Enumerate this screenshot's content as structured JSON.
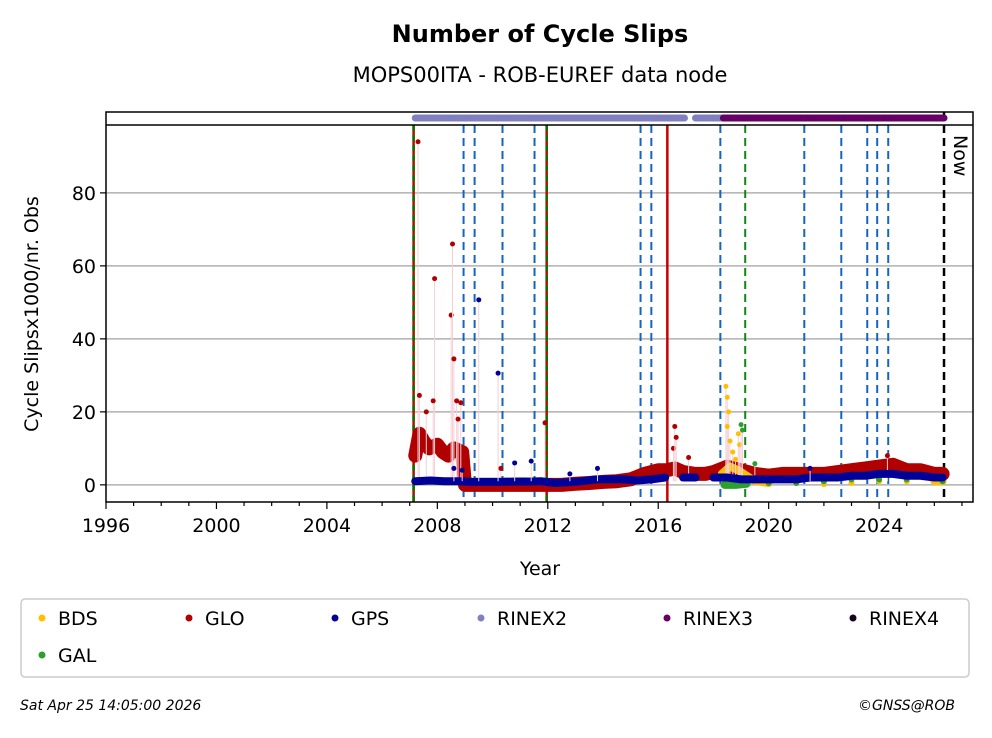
{
  "chart_data": {
    "type": "scatter",
    "title": "Number of Cycle Slips",
    "subtitle": "MOPS00ITA - ROB-EUREF data node",
    "xlabel": "Year",
    "ylabel": "Cycle Slipsx1000/nr. Obs",
    "xlim": [
      1996,
      2027.4
    ],
    "ylim": [
      -4.7,
      98.6
    ],
    "x_ticks": [
      1996,
      2000,
      2004,
      2008,
      2012,
      2016,
      2020,
      2024
    ],
    "x_tick_labels": [
      "1996",
      "2000",
      "2004",
      "2008",
      "2012",
      "2016",
      "2020",
      "2024"
    ],
    "y_ticks": [
      0,
      20,
      40,
      60,
      80
    ],
    "y_tick_labels": [
      "0",
      "20",
      "40",
      "60",
      "80"
    ],
    "grid": "horizontal",
    "legend_placement": "bottom",
    "series": [
      {
        "name": "GLO",
        "color": "#b00000",
        "points": [
          [
            2007.2,
            8
          ],
          [
            2007.35,
            14
          ],
          [
            2007.5,
            12
          ],
          [
            2007.7,
            10
          ],
          [
            2008.0,
            11
          ],
          [
            2008.2,
            9
          ],
          [
            2008.4,
            8
          ],
          [
            2008.6,
            10
          ],
          [
            2008.9,
            9
          ],
          [
            2009.0,
            0
          ],
          [
            2009.5,
            0
          ],
          [
            2010.0,
            0
          ],
          [
            2010.5,
            0
          ],
          [
            2011.0,
            0
          ],
          [
            2011.5,
            0
          ],
          [
            2012.0,
            0
          ],
          [
            2012.5,
            0
          ],
          [
            2013.0,
            0.3
          ],
          [
            2013.5,
            0.5
          ],
          [
            2014.0,
            0.8
          ],
          [
            2014.5,
            1
          ],
          [
            2015.0,
            1.5
          ],
          [
            2015.5,
            3
          ],
          [
            2016.0,
            4
          ],
          [
            2016.3,
            4
          ],
          [
            2016.6,
            4.5
          ],
          [
            2016.9,
            3.5
          ],
          [
            2017.35,
            3
          ],
          [
            2017.7,
            3
          ],
          [
            2018.0,
            3.5
          ],
          [
            2018.5,
            5
          ],
          [
            2019.0,
            4
          ],
          [
            2019.5,
            3
          ],
          [
            2020.0,
            2.5
          ],
          [
            2020.5,
            3
          ],
          [
            2021.0,
            3
          ],
          [
            2021.5,
            3
          ],
          [
            2022.0,
            3
          ],
          [
            2022.5,
            3.5
          ],
          [
            2023.0,
            4
          ],
          [
            2023.5,
            4.5
          ],
          [
            2024.0,
            5
          ],
          [
            2024.5,
            5.5
          ],
          [
            2025.0,
            4
          ],
          [
            2025.5,
            4
          ],
          [
            2026.0,
            3
          ],
          [
            2026.3,
            3
          ]
        ],
        "outliers": [
          [
            2007.3,
            94
          ],
          [
            2007.35,
            24.5
          ],
          [
            2007.6,
            20
          ],
          [
            2007.9,
            56.5
          ],
          [
            2007.85,
            23
          ],
          [
            2008.5,
            46.5
          ],
          [
            2008.55,
            66
          ],
          [
            2008.6,
            34.5
          ],
          [
            2008.7,
            23
          ],
          [
            2008.85,
            22.5
          ],
          [
            2008.75,
            18
          ],
          [
            2010.3,
            4.5
          ],
          [
            2011.9,
            17
          ],
          [
            2016.55,
            10
          ],
          [
            2016.6,
            16
          ],
          [
            2016.65,
            13
          ],
          [
            2017.1,
            7.5
          ],
          [
            2024.3,
            8
          ]
        ]
      },
      {
        "name": "GPS",
        "color": "#000099",
        "points": [
          [
            2007.2,
            1
          ],
          [
            2007.75,
            1.2
          ],
          [
            2008.25,
            1
          ],
          [
            2008.75,
            1
          ],
          [
            2009.25,
            0.8
          ],
          [
            2009.75,
            0.8
          ],
          [
            2010.25,
            0.8
          ],
          [
            2010.75,
            0.9
          ],
          [
            2011.25,
            0.9
          ],
          [
            2011.75,
            1
          ],
          [
            2012.25,
            0.5
          ],
          [
            2012.75,
            0.7
          ],
          [
            2013.25,
            1
          ],
          [
            2013.75,
            1.5
          ],
          [
            2014.25,
            1.5
          ],
          [
            2014.75,
            1.5
          ],
          [
            2015.25,
            1.2
          ],
          [
            2015.75,
            1.5
          ],
          [
            2016.25,
            2
          ],
          [
            2016.9,
            2
          ],
          [
            2017.35,
            2
          ],
          [
            2018.0,
            2
          ],
          [
            2018.5,
            2
          ],
          [
            2019.0,
            1.5
          ],
          [
            2019.5,
            1.5
          ],
          [
            2020.0,
            1.5
          ],
          [
            2020.5,
            1.5
          ],
          [
            2021.0,
            1.5
          ],
          [
            2021.5,
            2
          ],
          [
            2022.0,
            2
          ],
          [
            2022.5,
            2
          ],
          [
            2023.0,
            2.5
          ],
          [
            2023.5,
            2.5
          ],
          [
            2024.0,
            3
          ],
          [
            2024.5,
            3
          ],
          [
            2025.0,
            2.5
          ],
          [
            2025.5,
            2.5
          ],
          [
            2026.0,
            2
          ],
          [
            2026.3,
            2
          ]
        ],
        "outliers": [
          [
            2008.6,
            4.5
          ],
          [
            2008.9,
            4
          ],
          [
            2009.5,
            50.7
          ],
          [
            2010.2,
            30.6
          ],
          [
            2010.8,
            6
          ],
          [
            2011.4,
            6.5
          ],
          [
            2012.8,
            3
          ],
          [
            2013.8,
            4.5
          ],
          [
            2021.5,
            4.5
          ]
        ]
      },
      {
        "name": "BDS",
        "color": "#ffbf00",
        "points": [
          [
            2018.3,
            3
          ],
          [
            2018.6,
            5
          ],
          [
            2018.9,
            4
          ],
          [
            2019.1,
            3
          ],
          [
            2019.5,
            1
          ],
          [
            2020.0,
            0.5
          ],
          [
            2021.0,
            0.5
          ],
          [
            2022.0,
            0.2
          ],
          [
            2023.0,
            0.5
          ],
          [
            2024.0,
            1
          ],
          [
            2025.0,
            1
          ],
          [
            2026.0,
            1
          ],
          [
            2026.3,
            1
          ]
        ],
        "outliers": [
          [
            2018.45,
            27
          ],
          [
            2018.5,
            24
          ],
          [
            2018.55,
            20
          ],
          [
            2018.5,
            16
          ],
          [
            2018.6,
            12
          ],
          [
            2018.7,
            9
          ],
          [
            2018.8,
            7
          ],
          [
            2018.9,
            14
          ],
          [
            2018.95,
            11
          ]
        ]
      },
      {
        "name": "GAL",
        "color": "#2ca02c",
        "points": [
          [
            2018.4,
            0
          ],
          [
            2018.8,
            0
          ],
          [
            2019.2,
            0.3
          ],
          [
            2020.0,
            0.5
          ],
          [
            2021.0,
            0.5
          ],
          [
            2022.0,
            1
          ],
          [
            2023.0,
            1.5
          ],
          [
            2024.0,
            1.5
          ],
          [
            2025.0,
            1.5
          ],
          [
            2026.3,
            1
          ]
        ],
        "outliers": [
          [
            2019.0,
            16.5
          ],
          [
            2019.05,
            15
          ],
          [
            2019.5,
            5.8
          ]
        ]
      }
    ],
    "rinex_periods": [
      {
        "name": "RINEX2",
        "color": "#8080c0",
        "ranges": [
          [
            2007.2,
            2016.95
          ],
          [
            2017.35,
            2018.4
          ]
        ]
      },
      {
        "name": "RINEX3",
        "color": "#660066",
        "ranges": [
          [
            2018.36,
            2026.35
          ]
        ]
      },
      {
        "name": "RINEX4",
        "color": "#1a0020",
        "ranges": []
      }
    ],
    "event_lines": [
      {
        "year": 2007.14,
        "style": "red-green-dashed"
      },
      {
        "year": 2011.96,
        "style": "red-green-dashed"
      },
      {
        "year": 2016.33,
        "style": "red-solid"
      },
      {
        "year": 2019.15,
        "style": "green-dashed"
      },
      {
        "year": 2008.95,
        "style": "blue-dashed"
      },
      {
        "year": 2009.35,
        "style": "blue-dashed"
      },
      {
        "year": 2010.36,
        "style": "blue-dashed"
      },
      {
        "year": 2011.52,
        "style": "blue-dashed"
      },
      {
        "year": 2015.36,
        "style": "blue-dashed"
      },
      {
        "year": 2015.75,
        "style": "blue-dashed"
      },
      {
        "year": 2018.25,
        "style": "blue-dashed"
      },
      {
        "year": 2021.29,
        "style": "blue-dashed"
      },
      {
        "year": 2022.63,
        "style": "blue-dashed"
      },
      {
        "year": 2023.57,
        "style": "blue-dashed"
      },
      {
        "year": 2023.93,
        "style": "blue-dashed"
      },
      {
        "year": 2024.33,
        "style": "blue-dashed"
      }
    ],
    "now_line": {
      "year": 2026.35,
      "label": "Now"
    },
    "legend": [
      {
        "name": "BDS",
        "color": "#ffbf00"
      },
      {
        "name": "GLO",
        "color": "#b00000"
      },
      {
        "name": "GPS",
        "color": "#000099"
      },
      {
        "name": "RINEX2",
        "color": "#8080c0"
      },
      {
        "name": "RINEX3",
        "color": "#660066"
      },
      {
        "name": "RINEX4",
        "color": "#1a0020"
      },
      {
        "name": "GAL",
        "color": "#2ca02c"
      }
    ]
  },
  "footer": {
    "timestamp": "Sat Apr 25 14:05:00 2026",
    "copyright": "©GNSS@ROB"
  }
}
